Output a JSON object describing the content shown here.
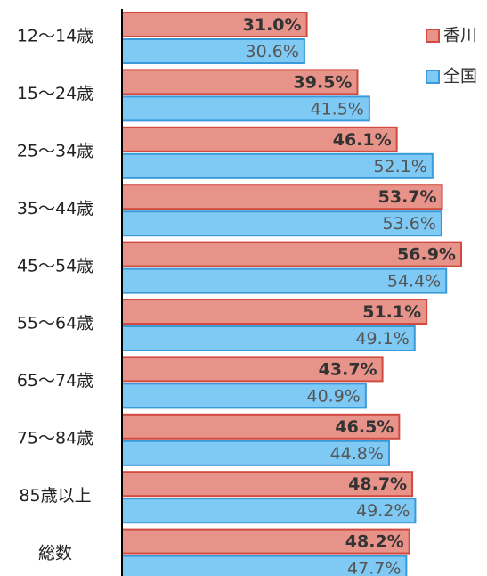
{
  "chart_data": {
    "type": "hbar",
    "categories": [
      "12〜14歳",
      "15〜24歳",
      "25〜34歳",
      "35〜44歳",
      "45〜54歳",
      "55〜64歳",
      "65〜74歳",
      "75〜84歳",
      "85歳以上",
      "総数"
    ],
    "series": [
      {
        "name": "香川",
        "color": "#e8938a",
        "values": [
          31.0,
          39.5,
          46.1,
          53.7,
          56.9,
          51.1,
          43.7,
          46.5,
          48.7,
          48.2
        ],
        "value_labels": [
          "31.0%",
          "39.5%",
          "46.1%",
          "53.7%",
          "56.9%",
          "51.1%",
          "43.7%",
          "46.5%",
          "48.7%",
          "48.2%"
        ]
      },
      {
        "name": "全国",
        "color": "#7fcaf5",
        "values": [
          30.6,
          41.5,
          52.1,
          53.6,
          54.4,
          49.1,
          40.9,
          44.8,
          49.2,
          47.7
        ],
        "value_labels": [
          "30.6%",
          "41.5%",
          "52.1%",
          "53.6%",
          "54.4%",
          "49.1%",
          "40.9%",
          "44.8%",
          "49.2%",
          "47.7%"
        ]
      }
    ],
    "xlim": [
      0,
      57.5
    ],
    "legend": "top-right"
  }
}
